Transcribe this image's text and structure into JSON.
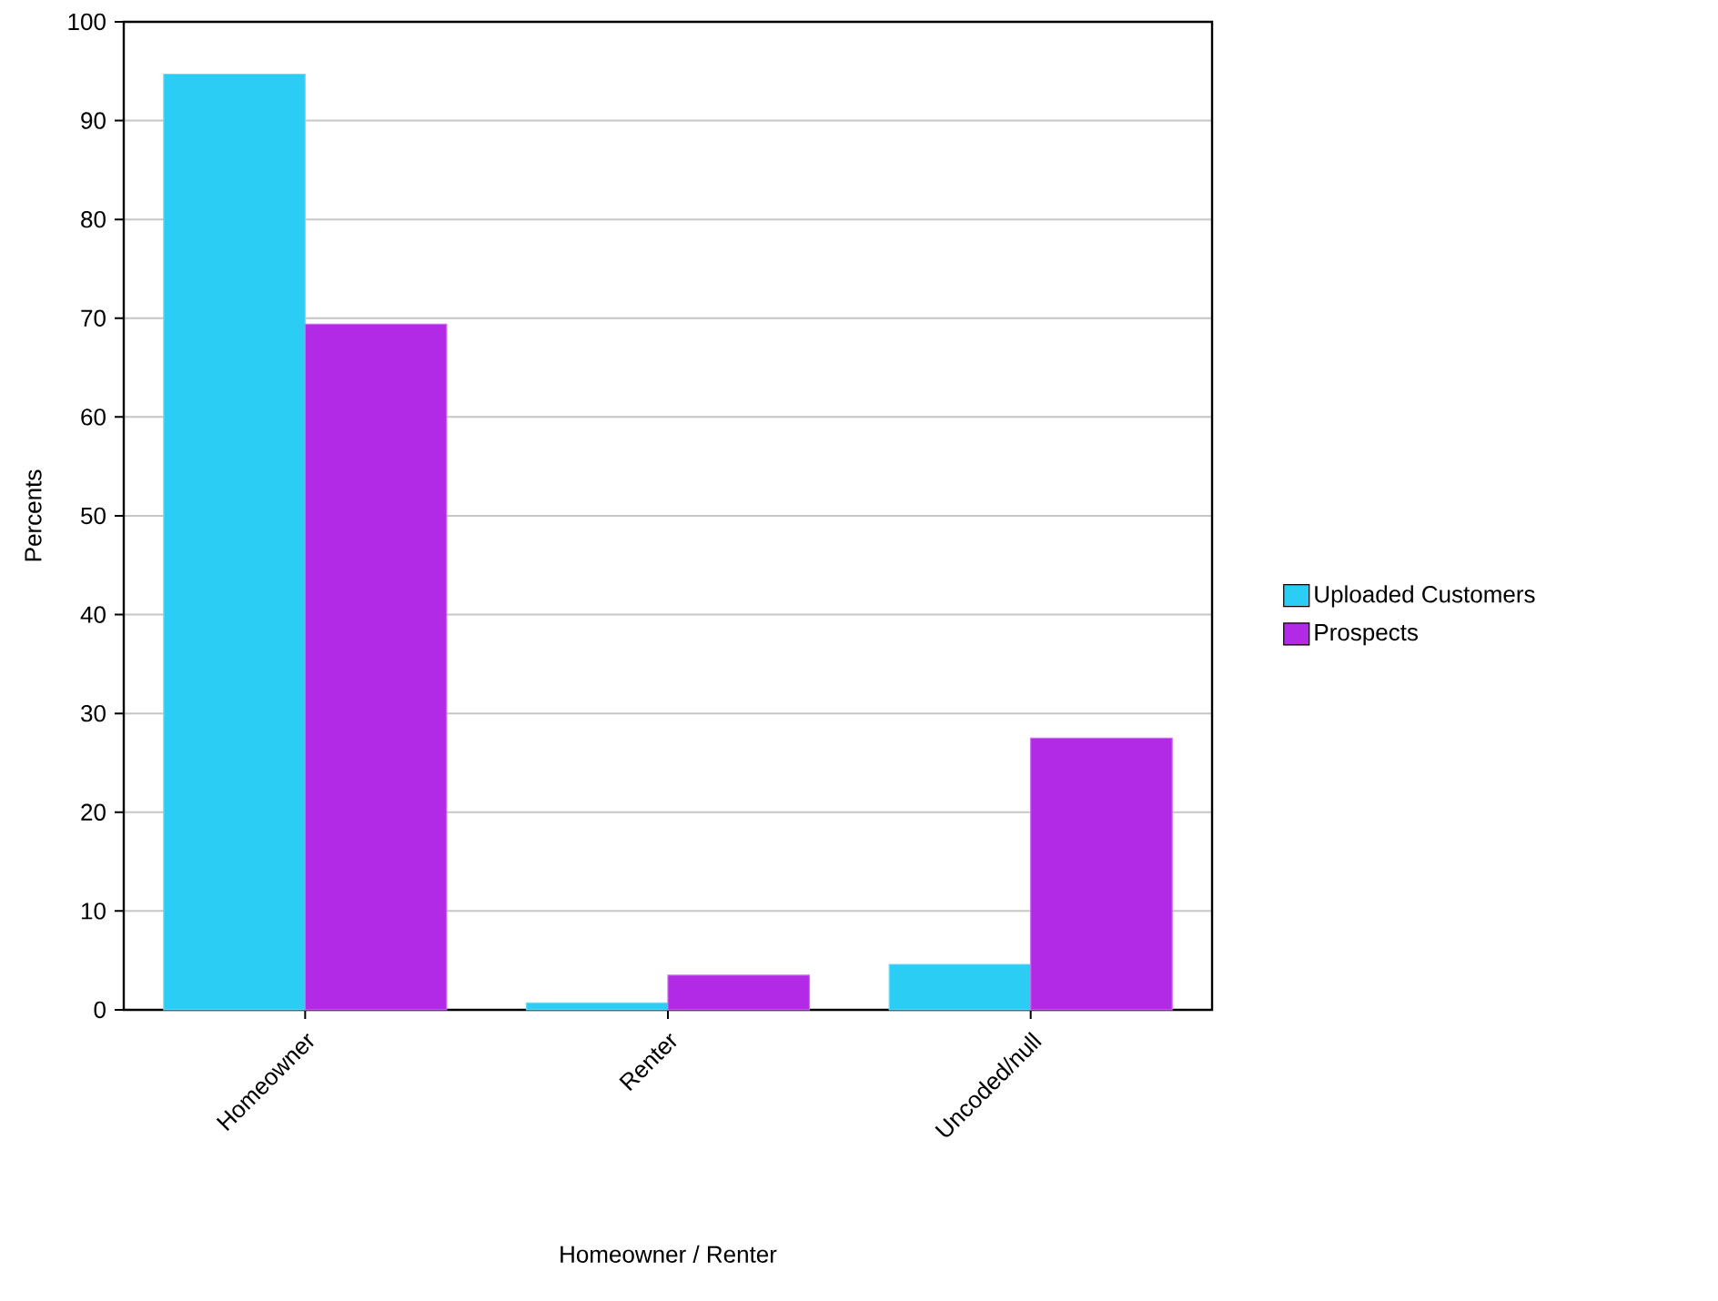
{
  "chart_data": {
    "type": "bar",
    "xlabel": "Homeowner / Renter",
    "ylabel": "Percents",
    "categories": [
      "Homeowner",
      "Renter",
      "Uncoded/null"
    ],
    "series": [
      {
        "name": "Uploaded Customers",
        "color": "#2ccdf5",
        "values": [
          94.7,
          0.7,
          4.6
        ]
      },
      {
        "name": "Prospects",
        "color": "#b22ae6",
        "values": [
          69.4,
          3.5,
          27.5
        ]
      }
    ],
    "ylim": [
      0,
      100
    ],
    "yticks": [
      0,
      10,
      20,
      30,
      40,
      50,
      60,
      70,
      80,
      90,
      100
    ],
    "grid": "y",
    "legend": "right"
  }
}
